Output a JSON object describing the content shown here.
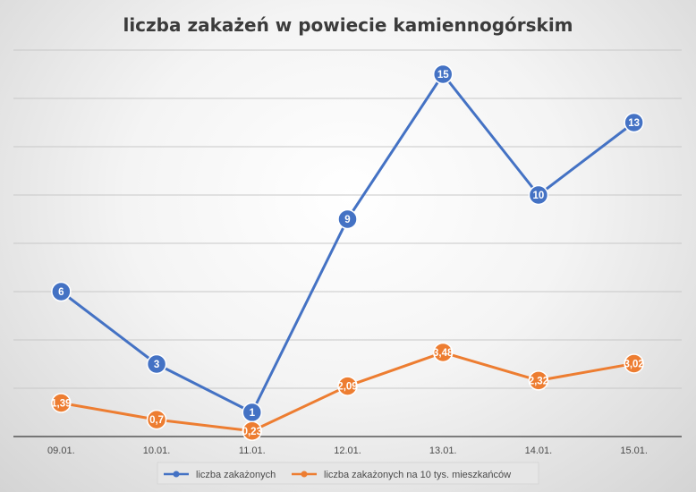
{
  "chart_data": {
    "type": "line",
    "title": "liczba zakażeń w powiecie kamiennogórskim",
    "categories": [
      "09.01.",
      "10.01.",
      "11.01.",
      "12.01.",
      "13.01.",
      "14.01.",
      "15.01."
    ],
    "ylim": [
      0,
      16
    ],
    "grid": true,
    "legend_position": "bottom",
    "series": [
      {
        "name": "liczba zakażonych",
        "color": "#4472C4",
        "values": [
          6,
          3,
          1,
          9,
          15,
          10,
          13
        ],
        "labels": [
          "6",
          "3",
          "1",
          "9",
          "15",
          "10",
          "13"
        ]
      },
      {
        "name": "liczba zakażonych na 10 tys. mieszkańców",
        "color": "#ED7D31",
        "values": [
          1.39,
          0.7,
          0.23,
          2.09,
          3.48,
          2.32,
          3.02
        ],
        "labels": [
          "1,39",
          "0,7",
          "0,23",
          "2,09",
          "3,48",
          "2,32",
          "3,02"
        ]
      }
    ]
  }
}
